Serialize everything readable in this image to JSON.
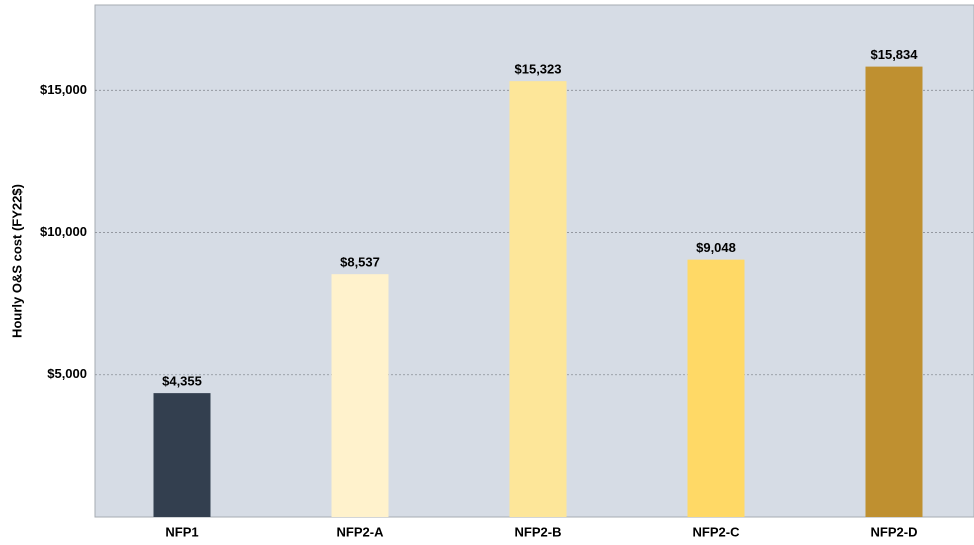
{
  "chart_data": {
    "type": "bar",
    "y_label": "Hourly O&S cost (FY22$)",
    "categories": [
      "NFP1",
      "NFP2-A",
      "NFP2-B",
      "NFP2-C",
      "NFP2-D"
    ],
    "values": [
      4355,
      8537,
      15323,
      9048,
      15834
    ],
    "value_labels": [
      "$4,355",
      "$8,537",
      "$15,323",
      "$9,048",
      "$15,834"
    ],
    "colors": [
      "#333f4f",
      "#fff2cc",
      "#fde699",
      "#ffd966",
      "#bf9030"
    ],
    "ylim": [
      0,
      18000
    ],
    "yticks": [
      {
        "value": 5000,
        "label": "$5,000"
      },
      {
        "value": 10000,
        "label": "$10,000"
      },
      {
        "value": 15000,
        "label": "$15,000"
      }
    ],
    "grid": true
  }
}
